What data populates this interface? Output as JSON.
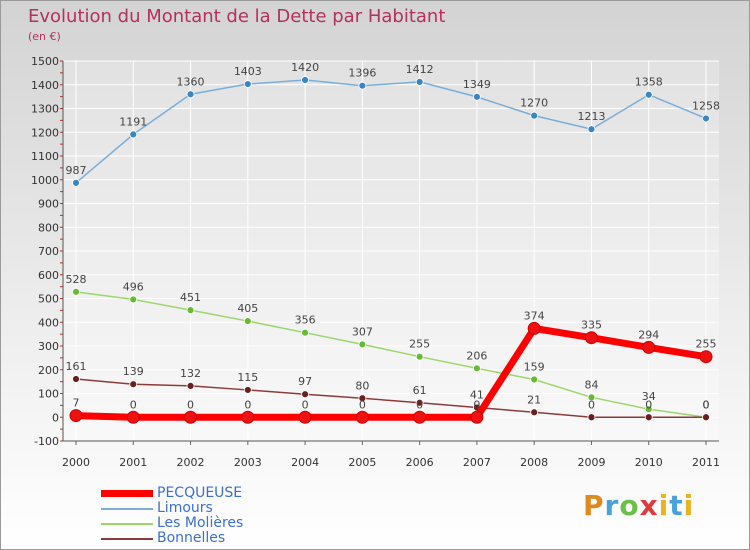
{
  "title": "Evolution du Montant de la Dette par Habitant",
  "unit": "(en €)",
  "chart_data": {
    "type": "line",
    "title": "Evolution du Montant de la Dette par Habitant",
    "ylabel": "(en €)",
    "xlabel": "",
    "ylim": [
      -100,
      1500
    ],
    "yticks": [
      -100,
      0,
      100,
      200,
      300,
      400,
      500,
      600,
      700,
      800,
      900,
      1000,
      1100,
      1200,
      1300,
      1400,
      1500
    ],
    "categories": [
      "2000",
      "2001",
      "2002",
      "2003",
      "2004",
      "2005",
      "2006",
      "2007",
      "2008",
      "2009",
      "2010",
      "2011"
    ],
    "series": [
      {
        "name": "PECQUEUSE",
        "color": "#ff0000",
        "marker": "#ee1111",
        "values": [
          7,
          0,
          0,
          0,
          0,
          0,
          0,
          0,
          374,
          335,
          294,
          255
        ]
      },
      {
        "name": "Limours",
        "color": "#7aaed8",
        "marker": "#3a86c2",
        "values": [
          987,
          1191,
          1360,
          1403,
          1420,
          1396,
          1412,
          1349,
          1270,
          1213,
          1358,
          1258
        ]
      },
      {
        "name": "Les Molières",
        "color": "#9bd66a",
        "marker": "#66bb33",
        "values": [
          528,
          496,
          451,
          405,
          356,
          307,
          255,
          206,
          159,
          84,
          34,
          0
        ]
      },
      {
        "name": "Bonnelles",
        "color": "#8c3b3b",
        "marker": "#6a2020",
        "values": [
          161,
          139,
          132,
          115,
          97,
          80,
          61,
          41,
          21,
          0,
          0,
          0
        ]
      }
    ]
  },
  "logo": {
    "p": "P",
    "r": "r",
    "o": "o",
    "x": "x",
    "i1": "i",
    "t": "t",
    "i2": "i"
  }
}
